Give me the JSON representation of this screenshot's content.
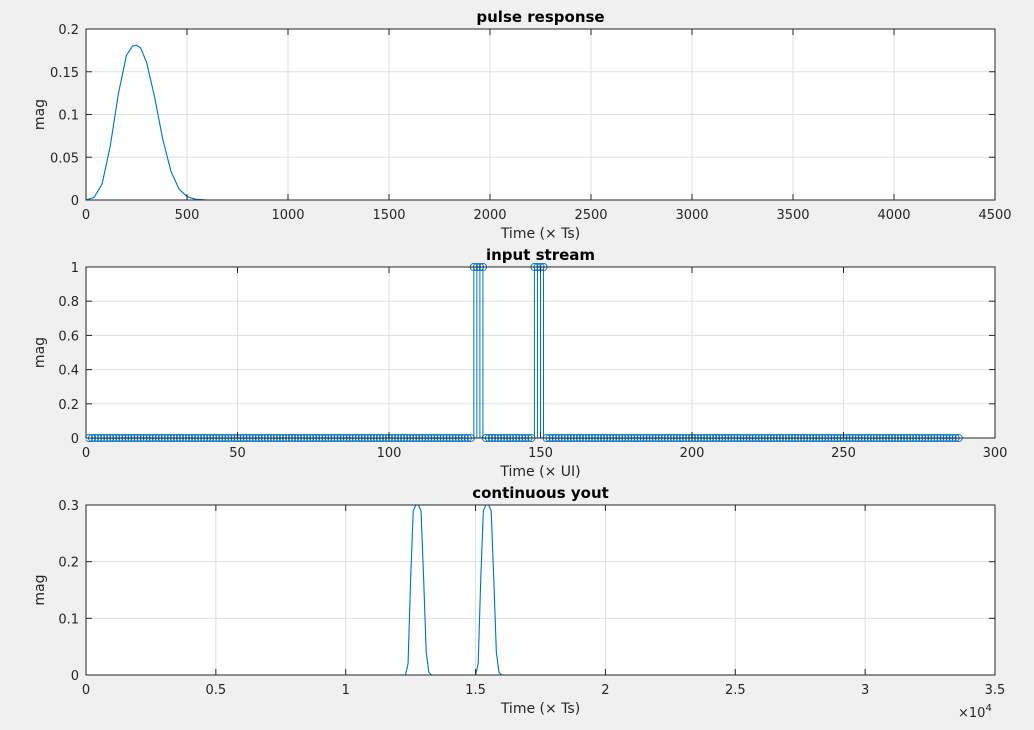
{
  "colors": {
    "figure_background": "#f0f0f0",
    "axes_background": "#ffffff",
    "series": "#0072bd",
    "grid": "#dfdfdf",
    "axis": "#262626"
  },
  "chart_data": [
    {
      "type": "line",
      "title": "pulse response",
      "xlabel": "Time (× Ts)",
      "ylabel": "mag",
      "xlim": [
        0,
        4500
      ],
      "ylim": [
        0,
        0.2
      ],
      "grid": true,
      "xticks": [
        0,
        500,
        1000,
        1500,
        2000,
        2500,
        3000,
        3500,
        4000,
        4500
      ],
      "xtick_labels": [
        "0",
        "500",
        "1000",
        "1500",
        "2000",
        "2500",
        "3000",
        "3500",
        "4000",
        "4500"
      ],
      "yticks": [
        0,
        0.05,
        0.1,
        0.15,
        0.2
      ],
      "ytick_labels": [
        "0",
        "0.05",
        "0.1",
        "0.15",
        "0.2"
      ],
      "series": [
        {
          "x": [
            0,
            40,
            80,
            120,
            160,
            200,
            230,
            250,
            270,
            300,
            340,
            380,
            420,
            460,
            500,
            540,
            600,
            800,
            1500,
            2500,
            3500,
            4096
          ],
          "y": [
            0,
            0.003,
            0.019,
            0.063,
            0.124,
            0.169,
            0.18,
            0.181,
            0.178,
            0.161,
            0.12,
            0.071,
            0.034,
            0.013,
            0.004,
            0.001,
            0,
            0,
            0,
            0,
            0,
            0
          ]
        }
      ]
    },
    {
      "type": "stem",
      "title": "input stream",
      "xlabel": "Time (× UI)",
      "ylabel": "mag",
      "xlim": [
        0,
        300
      ],
      "ylim": [
        0,
        1
      ],
      "grid": true,
      "xticks": [
        0,
        50,
        100,
        150,
        200,
        250,
        300
      ],
      "xtick_labels": [
        "0",
        "50",
        "100",
        "150",
        "200",
        "250",
        "300"
      ],
      "yticks": [
        0,
        0.2,
        0.4,
        0.6,
        0.8,
        1
      ],
      "ytick_labels": [
        "0",
        "0.2",
        "0.4",
        "0.6",
        "0.8",
        "1"
      ],
      "series": [
        {
          "x_start": 1,
          "x_end": 288,
          "value": 0,
          "ones": [
            128,
            129,
            130,
            131,
            148,
            149,
            150,
            151
          ]
        }
      ]
    },
    {
      "type": "line",
      "title": "continuous yout",
      "xlabel": "Time (× Ts)",
      "ylabel": "mag",
      "xlim": [
        0,
        35000
      ],
      "ylim": [
        0,
        0.3
      ],
      "grid": true,
      "exponent_label": "×10",
      "exponent_power": "4",
      "xticks": [
        0,
        5000,
        10000,
        15000,
        20000,
        25000,
        30000,
        35000
      ],
      "xtick_labels": [
        "0",
        "0.5",
        "1",
        "1.5",
        "2",
        "2.5",
        "3",
        "3.5"
      ],
      "yticks": [
        0,
        0.1,
        0.2,
        0.3
      ],
      "ytick_labels": [
        "0",
        "0.1",
        "0.2",
        "0.3"
      ],
      "series": [
        {
          "x": [
            0,
            12300,
            12400,
            12500,
            12600,
            12700,
            12800,
            12900,
            13000,
            13100,
            13200,
            13300,
            15000,
            15100,
            15200,
            15300,
            15400,
            15500,
            15600,
            15700,
            15800,
            15900,
            16000,
            32800
          ],
          "y": [
            0,
            0,
            0.02,
            0.17,
            0.29,
            0.3,
            0.3,
            0.29,
            0.17,
            0.04,
            0.005,
            0,
            0,
            0.02,
            0.17,
            0.29,
            0.3,
            0.3,
            0.29,
            0.17,
            0.04,
            0.005,
            0,
            0
          ]
        }
      ]
    }
  ]
}
